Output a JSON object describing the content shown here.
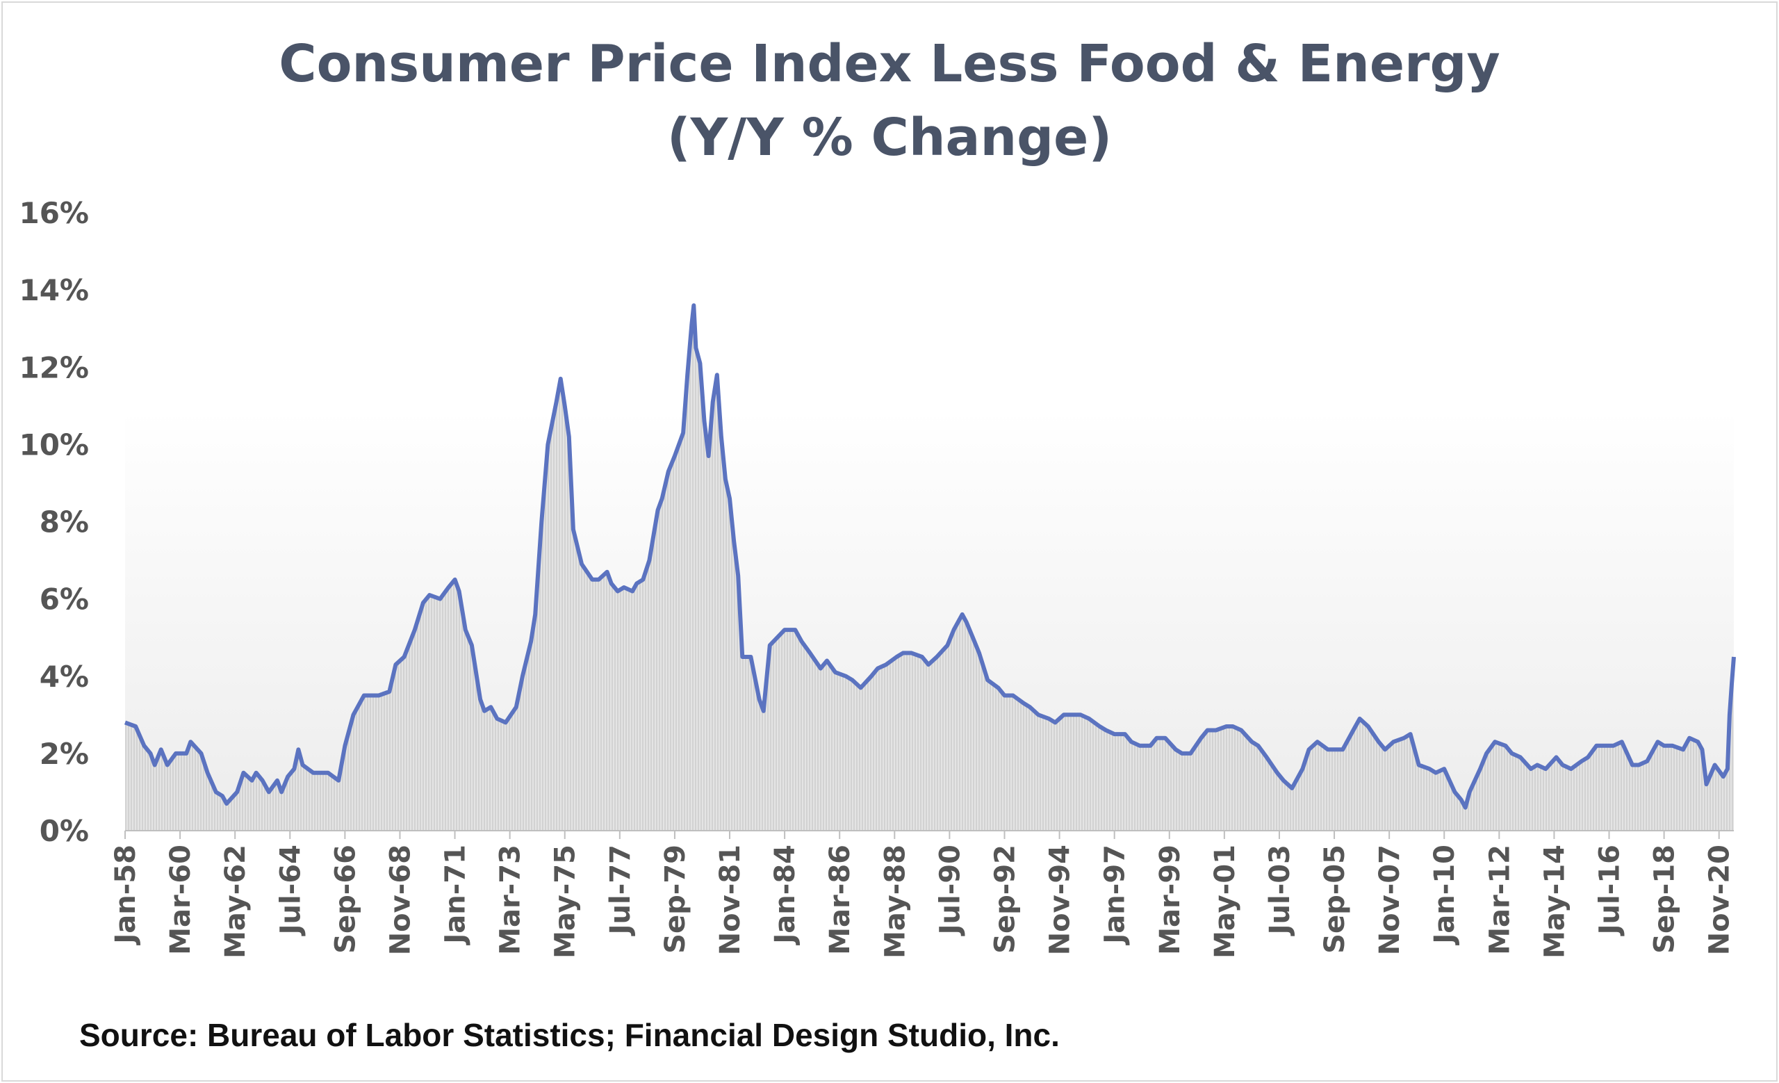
{
  "chart_data": {
    "type": "area",
    "title": "Consumer Price Index Less Food & Energy",
    "subtitle": "(Y/Y % Change)",
    "xlabel": "",
    "ylabel": "",
    "y_unit": "%",
    "ylim": [
      0,
      16
    ],
    "y_ticks": [
      "0%",
      "2%",
      "4%",
      "6%",
      "8%",
      "10%",
      "12%",
      "14%",
      "16%"
    ],
    "x_tick_labels": [
      "Jan-58",
      "Mar-60",
      "May-62",
      "Jul-64",
      "Sep-66",
      "Nov-68",
      "Jan-71",
      "Mar-73",
      "May-75",
      "Jul-77",
      "Sep-79",
      "Nov-81",
      "Jan-84",
      "Mar-86",
      "May-88",
      "Jul-90",
      "Sep-92",
      "Nov-94",
      "Jan-97",
      "Mar-99",
      "May-01",
      "Jul-03",
      "Sep-05",
      "Nov-07",
      "Jan-10",
      "Mar-12",
      "May-14",
      "Jul-16",
      "Sep-18",
      "Nov-20"
    ],
    "xlim": [
      "1958-01",
      "2021-06"
    ],
    "grid": false,
    "legend": "none",
    "series": [
      {
        "line_color": "#5b73c0",
        "fill_color": "#d9d9d9",
        "points": [
          [
            "1958-01",
            2.8
          ],
          [
            "1958-06",
            2.7
          ],
          [
            "1958-10",
            2.2
          ],
          [
            "1959-01",
            2.0
          ],
          [
            "1959-03",
            1.7
          ],
          [
            "1959-06",
            2.1
          ],
          [
            "1959-09",
            1.7
          ],
          [
            "1960-01",
            2.0
          ],
          [
            "1960-06",
            2.0
          ],
          [
            "1960-08",
            2.3
          ],
          [
            "1961-01",
            2.0
          ],
          [
            "1961-04",
            1.5
          ],
          [
            "1961-08",
            1.0
          ],
          [
            "1961-11",
            0.9
          ],
          [
            "1962-01",
            0.7
          ],
          [
            "1962-06",
            1.0
          ],
          [
            "1962-09",
            1.5
          ],
          [
            "1963-01",
            1.3
          ],
          [
            "1963-03",
            1.5
          ],
          [
            "1963-06",
            1.3
          ],
          [
            "1963-09",
            1.0
          ],
          [
            "1964-01",
            1.3
          ],
          [
            "1964-03",
            1.0
          ],
          [
            "1964-06",
            1.4
          ],
          [
            "1964-09",
            1.6
          ],
          [
            "1964-11",
            2.1
          ],
          [
            "1965-01",
            1.7
          ],
          [
            "1965-06",
            1.5
          ],
          [
            "1966-01",
            1.5
          ],
          [
            "1966-06",
            1.3
          ],
          [
            "1966-09",
            2.2
          ],
          [
            "1967-01",
            3.0
          ],
          [
            "1967-06",
            3.5
          ],
          [
            "1968-01",
            3.5
          ],
          [
            "1968-06",
            3.6
          ],
          [
            "1968-09",
            4.3
          ],
          [
            "1969-01",
            4.5
          ],
          [
            "1969-06",
            5.2
          ],
          [
            "1969-10",
            5.9
          ],
          [
            "1970-01",
            6.1
          ],
          [
            "1970-06",
            6.0
          ],
          [
            "1970-10",
            6.3
          ],
          [
            "1971-01",
            6.5
          ],
          [
            "1971-03",
            6.2
          ],
          [
            "1971-06",
            5.2
          ],
          [
            "1971-09",
            4.8
          ],
          [
            "1972-01",
            3.4
          ],
          [
            "1972-03",
            3.1
          ],
          [
            "1972-06",
            3.2
          ],
          [
            "1972-09",
            2.9
          ],
          [
            "1973-01",
            2.8
          ],
          [
            "1973-06",
            3.2
          ],
          [
            "1973-09",
            4.0
          ],
          [
            "1974-01",
            4.9
          ],
          [
            "1974-03",
            5.6
          ],
          [
            "1974-06",
            8.0
          ],
          [
            "1974-09",
            10.0
          ],
          [
            "1975-01",
            11.1
          ],
          [
            "1975-03",
            11.7
          ],
          [
            "1975-05",
            11.0
          ],
          [
            "1975-07",
            10.2
          ],
          [
            "1975-09",
            7.8
          ],
          [
            "1976-01",
            6.9
          ],
          [
            "1976-06",
            6.5
          ],
          [
            "1976-09",
            6.5
          ],
          [
            "1977-01",
            6.7
          ],
          [
            "1977-03",
            6.4
          ],
          [
            "1977-06",
            6.2
          ],
          [
            "1977-09",
            6.3
          ],
          [
            "1978-01",
            6.2
          ],
          [
            "1978-03",
            6.4
          ],
          [
            "1978-06",
            6.5
          ],
          [
            "1978-09",
            7.0
          ],
          [
            "1979-01",
            8.3
          ],
          [
            "1979-03",
            8.6
          ],
          [
            "1979-06",
            9.3
          ],
          [
            "1979-09",
            9.7
          ],
          [
            "1980-01",
            10.3
          ],
          [
            "1980-03",
            11.8
          ],
          [
            "1980-05",
            13.1
          ],
          [
            "1980-06",
            13.6
          ],
          [
            "1980-07",
            12.5
          ],
          [
            "1980-09",
            12.1
          ],
          [
            "1980-11",
            10.6
          ],
          [
            "1981-01",
            9.7
          ],
          [
            "1981-03",
            11.1
          ],
          [
            "1981-05",
            11.8
          ],
          [
            "1981-07",
            10.2
          ],
          [
            "1981-09",
            9.1
          ],
          [
            "1981-11",
            8.6
          ],
          [
            "1982-01",
            7.5
          ],
          [
            "1982-03",
            6.6
          ],
          [
            "1982-05",
            4.5
          ],
          [
            "1982-09",
            4.5
          ],
          [
            "1983-01",
            3.4
          ],
          [
            "1983-03",
            3.1
          ],
          [
            "1983-06",
            4.8
          ],
          [
            "1984-01",
            5.2
          ],
          [
            "1984-06",
            5.2
          ],
          [
            "1984-09",
            4.9
          ],
          [
            "1985-01",
            4.6
          ],
          [
            "1985-06",
            4.2
          ],
          [
            "1985-09",
            4.4
          ],
          [
            "1986-01",
            4.1
          ],
          [
            "1986-06",
            4.0
          ],
          [
            "1986-09",
            3.9
          ],
          [
            "1987-01",
            3.7
          ],
          [
            "1987-06",
            4.0
          ],
          [
            "1987-09",
            4.2
          ],
          [
            "1988-01",
            4.3
          ],
          [
            "1988-06",
            4.5
          ],
          [
            "1988-09",
            4.6
          ],
          [
            "1989-01",
            4.6
          ],
          [
            "1989-06",
            4.5
          ],
          [
            "1989-09",
            4.3
          ],
          [
            "1990-01",
            4.5
          ],
          [
            "1990-06",
            4.8
          ],
          [
            "1990-09",
            5.2
          ],
          [
            "1991-01",
            5.6
          ],
          [
            "1991-03",
            5.4
          ],
          [
            "1991-06",
            5.0
          ],
          [
            "1991-09",
            4.6
          ],
          [
            "1992-01",
            3.9
          ],
          [
            "1992-06",
            3.7
          ],
          [
            "1992-09",
            3.5
          ],
          [
            "1993-01",
            3.5
          ],
          [
            "1993-06",
            3.3
          ],
          [
            "1993-09",
            3.2
          ],
          [
            "1994-01",
            3.0
          ],
          [
            "1994-06",
            2.9
          ],
          [
            "1994-09",
            2.8
          ],
          [
            "1995-01",
            3.0
          ],
          [
            "1995-06",
            3.0
          ],
          [
            "1995-09",
            3.0
          ],
          [
            "1996-01",
            2.9
          ],
          [
            "1996-06",
            2.7
          ],
          [
            "1996-09",
            2.6
          ],
          [
            "1997-01",
            2.5
          ],
          [
            "1997-06",
            2.5
          ],
          [
            "1997-09",
            2.3
          ],
          [
            "1998-01",
            2.2
          ],
          [
            "1998-06",
            2.2
          ],
          [
            "1998-09",
            2.4
          ],
          [
            "1999-01",
            2.4
          ],
          [
            "1999-06",
            2.1
          ],
          [
            "1999-09",
            2.0
          ],
          [
            "2000-01",
            2.0
          ],
          [
            "2000-06",
            2.4
          ],
          [
            "2000-09",
            2.6
          ],
          [
            "2001-01",
            2.6
          ],
          [
            "2001-06",
            2.7
          ],
          [
            "2001-09",
            2.7
          ],
          [
            "2002-01",
            2.6
          ],
          [
            "2002-06",
            2.3
          ],
          [
            "2002-09",
            2.2
          ],
          [
            "2003-01",
            1.9
          ],
          [
            "2003-06",
            1.5
          ],
          [
            "2003-09",
            1.3
          ],
          [
            "2004-01",
            1.1
          ],
          [
            "2004-06",
            1.6
          ],
          [
            "2004-09",
            2.1
          ],
          [
            "2005-01",
            2.3
          ],
          [
            "2005-06",
            2.1
          ],
          [
            "2005-09",
            2.1
          ],
          [
            "2006-01",
            2.1
          ],
          [
            "2006-06",
            2.6
          ],
          [
            "2006-09",
            2.9
          ],
          [
            "2007-01",
            2.7
          ],
          [
            "2007-06",
            2.3
          ],
          [
            "2007-09",
            2.1
          ],
          [
            "2008-01",
            2.3
          ],
          [
            "2008-06",
            2.4
          ],
          [
            "2008-09",
            2.5
          ],
          [
            "2009-01",
            1.7
          ],
          [
            "2009-06",
            1.6
          ],
          [
            "2009-09",
            1.5
          ],
          [
            "2010-01",
            1.6
          ],
          [
            "2010-06",
            1.0
          ],
          [
            "2010-09",
            0.8
          ],
          [
            "2010-11",
            0.6
          ],
          [
            "2011-01",
            1.0
          ],
          [
            "2011-06",
            1.6
          ],
          [
            "2011-09",
            2.0
          ],
          [
            "2012-01",
            2.3
          ],
          [
            "2012-06",
            2.2
          ],
          [
            "2012-09",
            2.0
          ],
          [
            "2013-01",
            1.9
          ],
          [
            "2013-06",
            1.6
          ],
          [
            "2013-09",
            1.7
          ],
          [
            "2014-01",
            1.6
          ],
          [
            "2014-06",
            1.9
          ],
          [
            "2014-09",
            1.7
          ],
          [
            "2015-01",
            1.6
          ],
          [
            "2015-06",
            1.8
          ],
          [
            "2015-09",
            1.9
          ],
          [
            "2016-01",
            2.2
          ],
          [
            "2016-06",
            2.2
          ],
          [
            "2016-09",
            2.2
          ],
          [
            "2017-01",
            2.3
          ],
          [
            "2017-06",
            1.7
          ],
          [
            "2017-09",
            1.7
          ],
          [
            "2018-01",
            1.8
          ],
          [
            "2018-06",
            2.3
          ],
          [
            "2018-09",
            2.2
          ],
          [
            "2019-01",
            2.2
          ],
          [
            "2019-06",
            2.1
          ],
          [
            "2019-09",
            2.4
          ],
          [
            "2020-01",
            2.3
          ],
          [
            "2020-03",
            2.1
          ],
          [
            "2020-05",
            1.2
          ],
          [
            "2020-09",
            1.7
          ],
          [
            "2021-01",
            1.4
          ],
          [
            "2021-03",
            1.6
          ],
          [
            "2021-04",
            3.0
          ],
          [
            "2021-05",
            3.8
          ],
          [
            "2021-06",
            4.5
          ]
        ]
      }
    ]
  },
  "source_note": "Source: Bureau of Labor Statistics; Financial Design Studio, Inc."
}
